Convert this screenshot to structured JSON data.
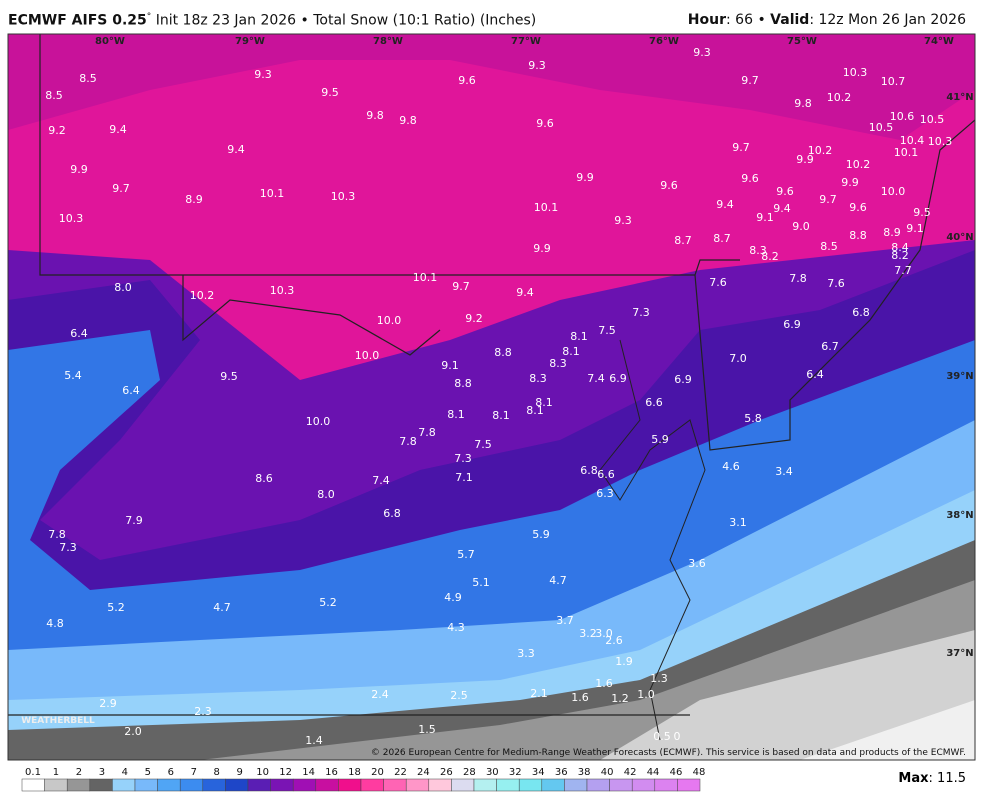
{
  "header": {
    "model": "ECMWF AIFS 0.25",
    "degree": "°",
    "info": "Init 18z 23 Jan 2026 • Total Snow (10:1 Ratio) (Inches)",
    "hour_label": "Hour",
    "hour": ": 66 •",
    "valid_label": "Valid",
    "valid": ": 12z Mon 26 Jan 2026"
  },
  "map": {
    "lon_labels": [
      "80°W",
      "79°W",
      "78°W",
      "77°W",
      "76°W",
      "75°W",
      "74°W"
    ],
    "lat_labels": [
      "41°N",
      "40°N",
      "39°N",
      "38°N",
      "37°N"
    ],
    "point_values": [
      "8.5",
      "9.3",
      "9.6",
      "9.3",
      "9.3",
      "9.7",
      "10.3",
      "10.7",
      "8.5",
      "9.5",
      "9.8",
      "10.2",
      "9.2",
      "9.4",
      "9.8",
      "9.8",
      "9.6",
      "10.5",
      "10.6",
      "10.5",
      "9.4",
      "9.7",
      "10.2",
      "9.9",
      "10.2",
      "10.4",
      "10.1",
      "10.3",
      "9.9",
      "9.9",
      "9.6",
      "9.6",
      "9.9",
      "10.0",
      "9.7",
      "8.9",
      "10.1",
      "10.3",
      "9.6",
      "9.7",
      "9.4",
      "9.6",
      "10.3",
      "10.1",
      "9.3",
      "9.1",
      "9.4",
      "9.0",
      "9.5",
      "8.7",
      "8.7",
      "9.9",
      "8.5",
      "8.8",
      "8.9",
      "9.1",
      "8.4",
      "8.3",
      "8.2",
      "8.2",
      "7.7",
      "10.1",
      "9.7",
      "9.4",
      "7.6",
      "7.8",
      "7.6",
      "8.0",
      "10.2",
      "10.3",
      "9.2",
      "10.0",
      "7.3",
      "7.5",
      "8.1",
      "6.8",
      "6.9",
      "6.4",
      "8.8",
      "8.1",
      "8.3",
      "10.0",
      "9.1",
      "7.0",
      "6.7",
      "5.4",
      "9.5",
      "8.3",
      "7.4",
      "6.9",
      "6.9",
      "6.4",
      "8.8",
      "6.4",
      "8.1",
      "6.6",
      "8.1",
      "8.1",
      "8.1",
      "5.8",
      "10.0",
      "7.8",
      "7.8",
      "7.5",
      "5.9",
      "7.3",
      "4.6",
      "3.4",
      "6.8",
      "6.6",
      "8.6",
      "7.4",
      "7.1",
      "6.3",
      "8.0",
      "6.8",
      "3.1",
      "7.9",
      "7.8",
      "7.3",
      "5.9",
      "5.7",
      "3.6",
      "5.1",
      "4.7",
      "5.2",
      "4.7",
      "5.2",
      "4.9",
      "4.8",
      "4.3",
      "3.7",
      "3.2",
      "3.0",
      "2.6",
      "3.3",
      "1.9",
      "1.3",
      "1.6",
      "2.1",
      "1.6",
      "1.2",
      "1.0",
      "2.4",
      "2.5",
      "2.9",
      "2.3",
      "2.0",
      "1.5",
      "1.4",
      "0.5",
      "0"
    ],
    "watermark": "WEATHERBELL",
    "copyright": "© 2026 European Centre for Medium-Range Weather Forecasts (ECMWF). This service is based on data and products of the ECMWF."
  },
  "colorbar": {
    "labels": [
      "0.1",
      "1",
      "2",
      "3",
      "4",
      "5",
      "6",
      "7",
      "8",
      "9",
      "10",
      "12",
      "14",
      "16",
      "18",
      "20",
      "22",
      "24",
      "26",
      "28",
      "30",
      "32",
      "34",
      "36",
      "38",
      "40",
      "42",
      "44",
      "46",
      "48"
    ],
    "colors": [
      "#ffffff",
      "#c8c8c8",
      "#969696",
      "#646464",
      "#96d2fa",
      "#78b9fa",
      "#50a5f5",
      "#3c8cf0",
      "#2864dc",
      "#1e46c8",
      "#5a1eb4",
      "#7a14b4",
      "#a00fb4",
      "#c80fa0",
      "#f00f8c",
      "#ff3ca0",
      "#ff64b4",
      "#ff96c8",
      "#ffc8dc",
      "#dcdcf0",
      "#b4f0f0",
      "#96f0f0",
      "#78e6f0",
      "#64c8f0",
      "#a0b4f0",
      "#b4a0f0",
      "#c896f0",
      "#d28cf0",
      "#dc82f0",
      "#e678f0"
    ]
  },
  "footer": {
    "max_label": "Max",
    "max": ": 11.5"
  }
}
